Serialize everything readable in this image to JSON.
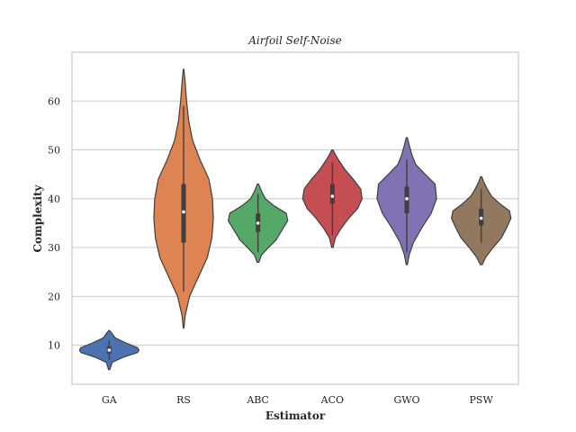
{
  "chart_data": {
    "type": "violin",
    "title": "Airfoil Self-Noise",
    "xlabel": "Estimator",
    "ylabel": "Complexity",
    "categories": [
      "GA",
      "RS",
      "ABC",
      "ACO",
      "GWO",
      "PSW"
    ],
    "ylim": [
      2,
      70
    ],
    "yticks": [
      10,
      20,
      30,
      40,
      50,
      60
    ],
    "grid": true,
    "series": [
      {
        "category": "GA",
        "color": "#4c72b0",
        "min": 5,
        "max": 13,
        "whisker_low": 7,
        "whisker_high": 11,
        "q1": 8.3,
        "median": 9,
        "q3": 9.8,
        "density": [
          [
            5,
            0.02
          ],
          [
            6.5,
            0.1
          ],
          [
            7.5,
            0.45
          ],
          [
            8.5,
            0.95
          ],
          [
            9,
            1.0
          ],
          [
            9.5,
            0.95
          ],
          [
            10.5,
            0.55
          ],
          [
            11.5,
            0.2
          ],
          [
            12.5,
            0.08
          ],
          [
            13,
            0.02
          ]
        ]
      },
      {
        "category": "RS",
        "color": "#dd8452",
        "min": 13.5,
        "max": 66.5,
        "whisker_low": 21,
        "whisker_high": 59,
        "q1": 31,
        "median": 37.3,
        "q3": 43,
        "density": [
          [
            13.5,
            0.01
          ],
          [
            16,
            0.05
          ],
          [
            20,
            0.2
          ],
          [
            24,
            0.5
          ],
          [
            28,
            0.8
          ],
          [
            32,
            0.95
          ],
          [
            36,
            1.0
          ],
          [
            40,
            0.97
          ],
          [
            44,
            0.85
          ],
          [
            48,
            0.55
          ],
          [
            52,
            0.3
          ],
          [
            56,
            0.17
          ],
          [
            60,
            0.1
          ],
          [
            64,
            0.05
          ],
          [
            66.5,
            0.01
          ]
        ]
      },
      {
        "category": "ABC",
        "color": "#55a868",
        "min": 27,
        "max": 43,
        "whisker_low": 29,
        "whisker_high": 41,
        "q1": 33.2,
        "median": 35,
        "q3": 37,
        "density": [
          [
            27,
            0.03
          ],
          [
            28.5,
            0.12
          ],
          [
            30,
            0.35
          ],
          [
            31.5,
            0.6
          ],
          [
            33,
            0.75
          ],
          [
            34,
            0.85
          ],
          [
            35.5,
            1.0
          ],
          [
            37,
            0.95
          ],
          [
            38.5,
            0.55
          ],
          [
            40,
            0.25
          ],
          [
            41.5,
            0.12
          ],
          [
            43,
            0.02
          ]
        ]
      },
      {
        "category": "ACO",
        "color": "#c44e52",
        "min": 30,
        "max": 50,
        "whisker_low": 32.5,
        "whisker_high": 47.5,
        "q1": 39,
        "median": 40.5,
        "q3": 43,
        "density": [
          [
            30,
            0.02
          ],
          [
            32,
            0.1
          ],
          [
            34,
            0.3
          ],
          [
            36,
            0.55
          ],
          [
            38,
            0.85
          ],
          [
            40,
            1.0
          ],
          [
            42,
            0.95
          ],
          [
            44,
            0.7
          ],
          [
            46,
            0.42
          ],
          [
            48,
            0.2
          ],
          [
            49,
            0.1
          ],
          [
            50,
            0.02
          ]
        ]
      },
      {
        "category": "GWO",
        "color": "#8172b3",
        "min": 26.5,
        "max": 52.5,
        "whisker_low": 29,
        "whisker_high": 48,
        "q1": 37,
        "median": 40,
        "q3": 42.5,
        "density": [
          [
            26.5,
            0.02
          ],
          [
            28.5,
            0.08
          ],
          [
            31,
            0.22
          ],
          [
            34,
            0.5
          ],
          [
            37,
            0.82
          ],
          [
            40,
            1.0
          ],
          [
            43,
            0.95
          ],
          [
            45,
            0.62
          ],
          [
            47,
            0.3
          ],
          [
            49,
            0.17
          ],
          [
            51,
            0.08
          ],
          [
            52.5,
            0.02
          ]
        ]
      },
      {
        "category": "PSW",
        "color": "#937860",
        "min": 26.5,
        "max": 44.5,
        "whisker_low": 31,
        "whisker_high": 42,
        "q1": 34.5,
        "median": 36,
        "q3": 38,
        "density": [
          [
            26.5,
            0.03
          ],
          [
            28,
            0.15
          ],
          [
            30,
            0.4
          ],
          [
            32,
            0.68
          ],
          [
            34,
            0.85
          ],
          [
            36,
            1.0
          ],
          [
            37.5,
            0.95
          ],
          [
            39,
            0.62
          ],
          [
            40.5,
            0.35
          ],
          [
            42,
            0.2
          ],
          [
            43.5,
            0.08
          ],
          [
            44.5,
            0.02
          ]
        ]
      }
    ]
  }
}
